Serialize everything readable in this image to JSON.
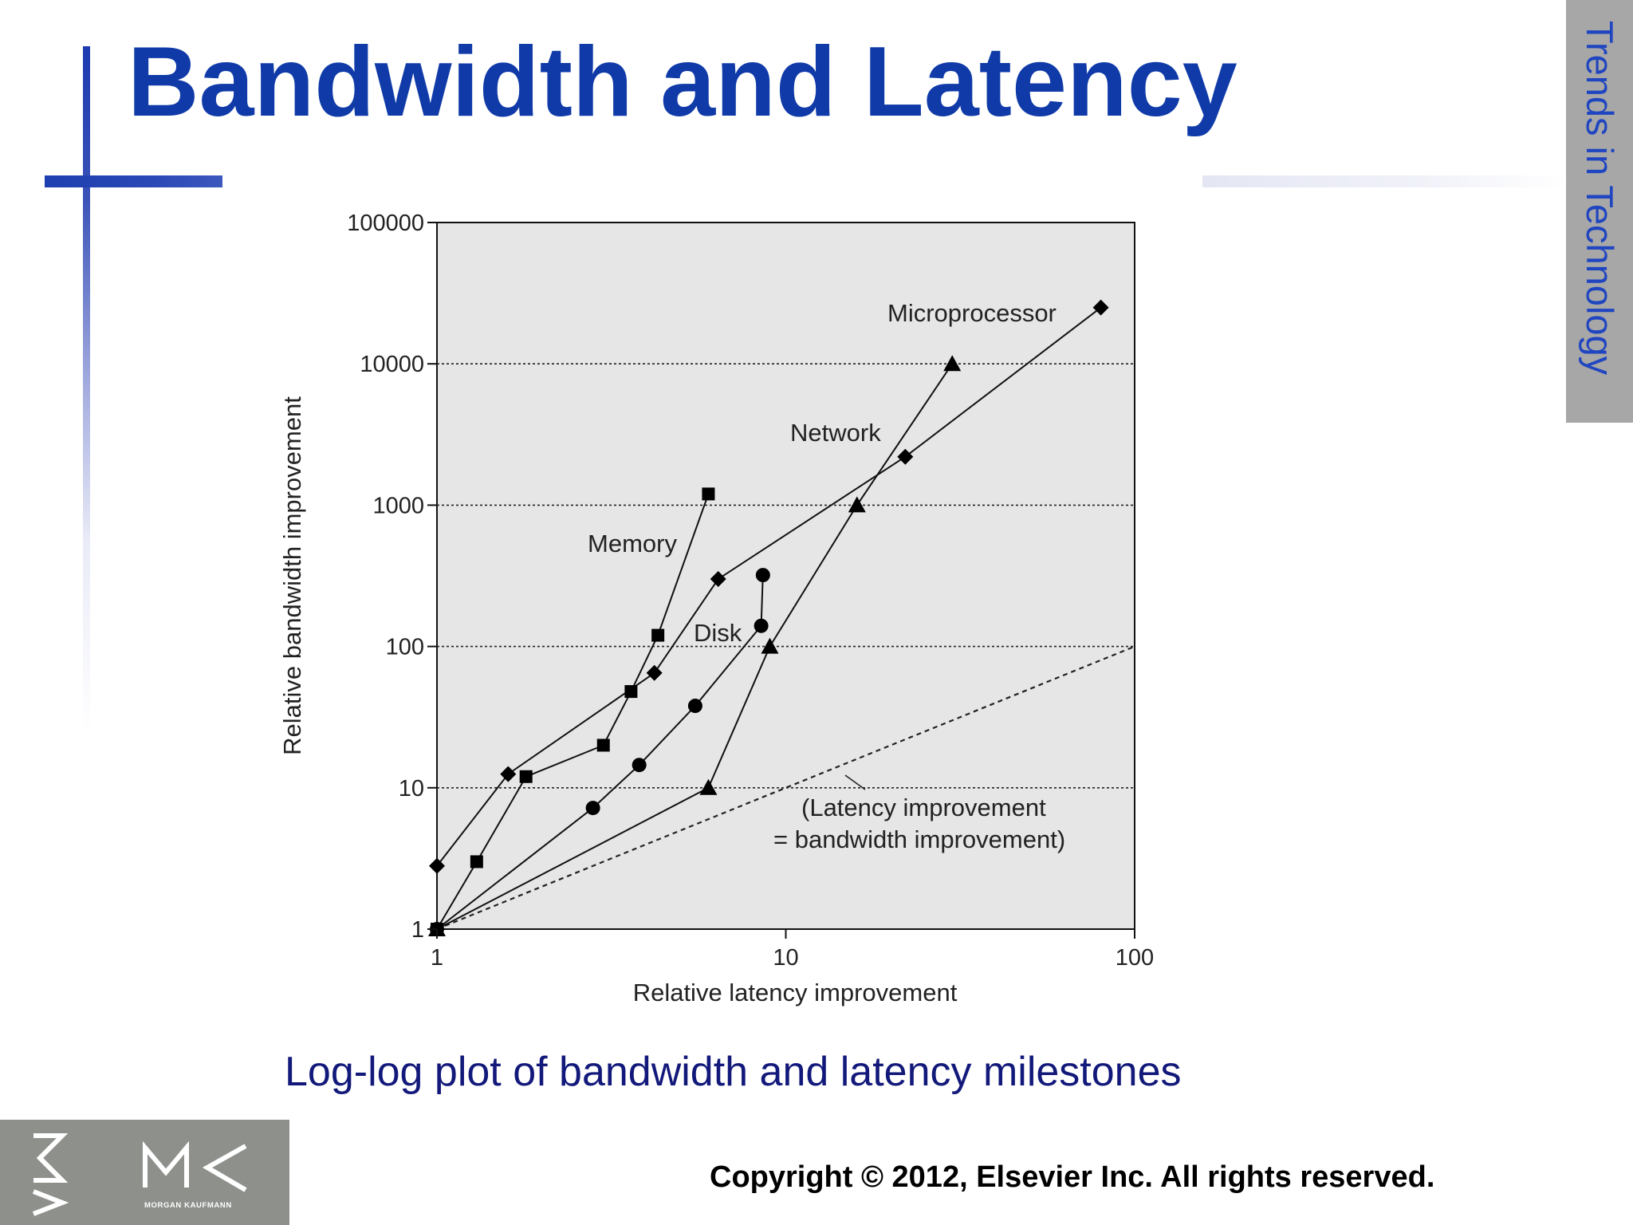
{
  "slide": {
    "title": "Bandwidth and Latency",
    "side_tab": "Trends in Technology",
    "caption": "Log-log plot of bandwidth and latency milestones",
    "copyright": "Copyright © 2012, Elsevier Inc. All rights reserved.",
    "logo": {
      "text": "MK",
      "subtext": "MORGAN KAUFMANN"
    },
    "colors": {
      "title": "#0f3aa8",
      "accent_bar": "#1e3fb0",
      "side_tab_bg": "#a7a7a7",
      "side_tab_text": "#1f45c0",
      "caption": "#12197a",
      "plot_bg": "#e6e6e6",
      "logo_bg": "#8d908b"
    }
  },
  "chart_data": {
    "type": "line",
    "title": "",
    "xlabel": "Relative latency improvement",
    "ylabel": "Relative bandwidth improvement",
    "x_scale": "log",
    "y_scale": "log",
    "xlim": [
      1,
      100
    ],
    "ylim": [
      1,
      100000
    ],
    "x_ticks": [
      1,
      10,
      100
    ],
    "x_tick_labels": [
      "1",
      "10",
      "100"
    ],
    "y_ticks": [
      1,
      10,
      100,
      1000,
      10000,
      100000
    ],
    "y_tick_labels": [
      "1",
      "10",
      "100",
      "1000",
      "10000",
      "100000"
    ],
    "grid": "horizontal dotted lines at 10, 100, 1000, 10000",
    "legend": "none (series labeled directly on plot)",
    "series": [
      {
        "name": "Microprocessor",
        "marker": "triangle",
        "points": [
          [
            1,
            1
          ],
          [
            6,
            10
          ],
          [
            9,
            100
          ],
          [
            16,
            1000
          ],
          [
            30,
            10000
          ]
        ]
      },
      {
        "name": "Network",
        "marker": "diamond",
        "points": [
          [
            1,
            2.8
          ],
          [
            1.6,
            12.5
          ],
          [
            4.2,
            65
          ],
          [
            6.4,
            300
          ],
          [
            22,
            2200
          ],
          [
            80,
            25000
          ]
        ]
      },
      {
        "name": "Memory",
        "marker": "square",
        "points": [
          [
            1,
            1
          ],
          [
            1.3,
            3
          ],
          [
            1.8,
            12
          ],
          [
            3,
            20
          ],
          [
            3.6,
            48
          ],
          [
            4.3,
            120
          ],
          [
            6,
            1200
          ]
        ]
      },
      {
        "name": "Disk",
        "marker": "circle",
        "points": [
          [
            1,
            1
          ],
          [
            2.8,
            7.2
          ],
          [
            3.8,
            14.5
          ],
          [
            5.5,
            38
          ],
          [
            8.5,
            140
          ],
          [
            8.6,
            320
          ]
        ]
      }
    ],
    "reference_line": {
      "label_line1": "(Latency improvement",
      "label_line2": "= bandwidth improvement)",
      "style": "dashed",
      "points": [
        [
          1,
          1
        ],
        [
          100,
          100
        ]
      ]
    }
  }
}
